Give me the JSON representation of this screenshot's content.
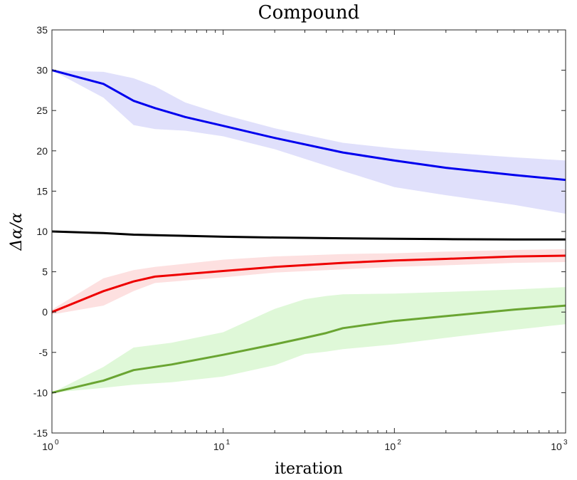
{
  "chart_data": {
    "type": "line",
    "title": "Compound",
    "xlabel": "iteration",
    "ylabel": "Δα/α",
    "xscale": "log",
    "xlim": [
      1,
      1000
    ],
    "ylim": [
      -15,
      35
    ],
    "xticks": [
      {
        "value": 1,
        "base": "10",
        "exp": "0"
      },
      {
        "value": 10,
        "base": "10",
        "exp": "1"
      },
      {
        "value": 100,
        "base": "10",
        "exp": "2"
      },
      {
        "value": 1000,
        "base": "10",
        "exp": "3"
      }
    ],
    "yticks": [
      "-15",
      "-10",
      "-5",
      "0",
      "5",
      "10",
      "15",
      "20",
      "25",
      "30",
      "35"
    ],
    "grid": false,
    "legend": "none",
    "series": [
      {
        "color": "#0000ee",
        "band_color": "#e0e0fb",
        "x": [
          1,
          2,
          3,
          4,
          6,
          10,
          20,
          50,
          100,
          200,
          500,
          1000
        ],
        "values": [
          30,
          28.3,
          26.2,
          25.3,
          24.2,
          23.1,
          21.6,
          19.8,
          18.8,
          17.9,
          17.0,
          16.4
        ],
        "upper": [
          30,
          29.8,
          29.0,
          28.0,
          26.0,
          24.5,
          22.8,
          21.0,
          20.3,
          19.8,
          19.2,
          18.8
        ],
        "lower": [
          30,
          26.6,
          23.2,
          22.7,
          22.5,
          21.8,
          20.2,
          17.5,
          15.5,
          14.5,
          13.3,
          12.2
        ]
      },
      {
        "color": "#000000",
        "band_color": "#dddddd",
        "x": [
          1,
          2,
          3,
          5,
          10,
          20,
          50,
          100,
          200,
          500,
          1000
        ],
        "values": [
          10,
          9.8,
          9.6,
          9.5,
          9.35,
          9.25,
          9.15,
          9.1,
          9.05,
          9.0,
          9.0
        ],
        "upper": [
          10,
          9.85,
          9.7,
          9.6,
          9.45,
          9.35,
          9.25,
          9.2,
          9.15,
          9.1,
          9.1
        ],
        "lower": [
          10,
          9.75,
          9.5,
          9.4,
          9.25,
          9.15,
          9.05,
          9.0,
          8.95,
          8.9,
          8.9
        ]
      },
      {
        "color": "#ee0000",
        "band_color": "#fde0e0",
        "x": [
          1,
          2,
          3,
          4,
          10,
          20,
          50,
          100,
          200,
          500,
          1000
        ],
        "values": [
          0,
          2.6,
          3.8,
          4.4,
          5.1,
          5.6,
          6.1,
          6.4,
          6.6,
          6.9,
          7.0
        ],
        "upper": [
          0.3,
          4.2,
          5.2,
          5.6,
          6.5,
          6.9,
          7.2,
          7.3,
          7.5,
          7.7,
          7.8
        ],
        "lower": [
          -0.3,
          0.8,
          2.6,
          3.6,
          4.3,
          4.9,
          5.3,
          5.6,
          5.8,
          6.1,
          6.2
        ]
      },
      {
        "color": "#6aa532",
        "band_color": "#dff8d8",
        "x": [
          1,
          2,
          3,
          5,
          10,
          20,
          30,
          40,
          50,
          100,
          200,
          500,
          1000
        ],
        "values": [
          -10,
          -8.5,
          -7.2,
          -6.5,
          -5.3,
          -4.0,
          -3.2,
          -2.6,
          -2.0,
          -1.1,
          -0.5,
          0.3,
          0.8
        ],
        "upper": [
          -10,
          -6.8,
          -4.4,
          -3.8,
          -2.5,
          0.4,
          1.6,
          2.0,
          2.2,
          2.3,
          2.5,
          2.8,
          3.1
        ],
        "lower": [
          -10,
          -9.4,
          -9.0,
          -8.7,
          -8.0,
          -6.6,
          -5.2,
          -4.9,
          -4.6,
          -4.0,
          -3.2,
          -2.2,
          -1.5
        ]
      }
    ]
  }
}
